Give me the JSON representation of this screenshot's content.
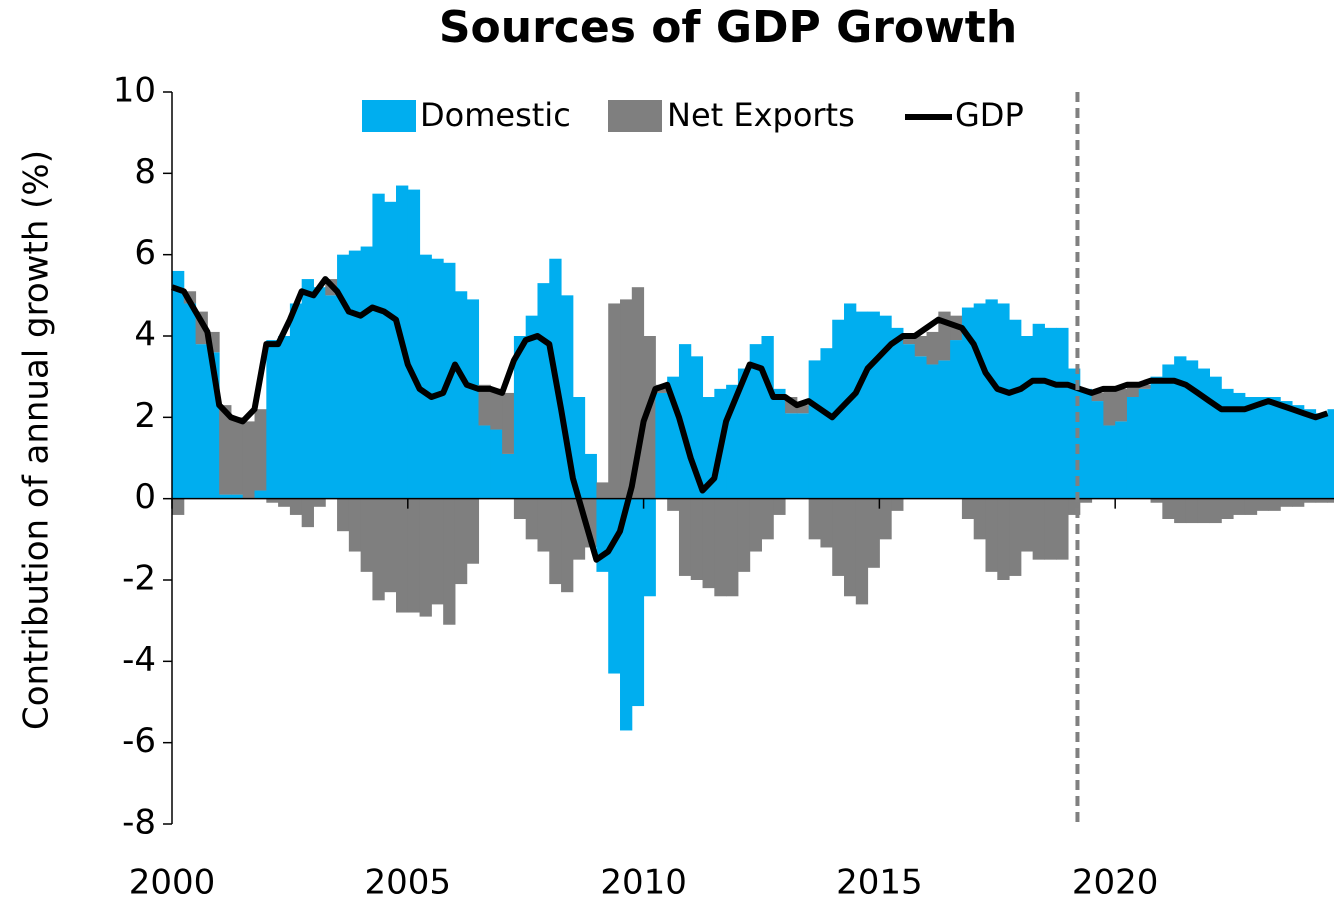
{
  "chart_data": {
    "type": "bar",
    "title": "Sources of GDP Growth",
    "y_label": "Contribution of annual growth (%)",
    "x": [
      2000,
      2000.25,
      2000.5,
      2000.75,
      2001,
      2001.25,
      2001.5,
      2001.75,
      2002,
      2002.25,
      2002.5,
      2002.75,
      2003,
      2003.25,
      2003.5,
      2003.75,
      2004,
      2004.25,
      2004.5,
      2004.75,
      2005,
      2005.25,
      2005.5,
      2005.75,
      2006,
      2006.25,
      2006.5,
      2006.75,
      2007,
      2007.25,
      2007.5,
      2007.75,
      2008,
      2008.25,
      2008.5,
      2008.75,
      2009,
      2009.25,
      2009.5,
      2009.75,
      2010,
      2010.25,
      2010.5,
      2010.75,
      2011,
      2011.25,
      2011.5,
      2011.75,
      2012,
      2012.25,
      2012.5,
      2012.75,
      2013,
      2013.25,
      2013.5,
      2013.75,
      2014,
      2014.25,
      2014.5,
      2014.75,
      2015,
      2015.25,
      2015.5,
      2015.75,
      2016,
      2016.25,
      2016.5,
      2016.75,
      2017,
      2017.25,
      2017.5,
      2017.75,
      2018,
      2018.25,
      2018.5,
      2018.75,
      2019,
      2019.25,
      2019.5,
      2019.75,
      2020,
      2020.25,
      2020.5,
      2020.75,
      2021,
      2021.25,
      2021.5,
      2021.75,
      2022,
      2022.25,
      2022.5,
      2022.75,
      2023,
      2023.25,
      2023.5,
      2023.75,
      2024,
      2024.25,
      2024.5
    ],
    "series": [
      {
        "name": "Domestic",
        "color": "#00aeef",
        "type": "bar",
        "values": [
          5.6,
          4.8,
          3.8,
          3.6,
          0.1,
          0.1,
          0.0,
          0.2,
          3.9,
          4.0,
          4.8,
          5.4,
          5.2,
          5.0,
          6.0,
          6.1,
          6.2,
          7.5,
          7.3,
          7.7,
          7.6,
          6.0,
          5.9,
          5.8,
          5.1,
          4.9,
          1.8,
          1.7,
          1.1,
          4.0,
          4.5,
          5.3,
          5.9,
          5.0,
          2.5,
          1.1,
          -1.8,
          -4.3,
          -5.7,
          -5.1,
          -2.4,
          2.6,
          3.0,
          3.8,
          3.5,
          2.5,
          2.7,
          2.8,
          3.2,
          3.8,
          4.0,
          2.7,
          2.1,
          2.1,
          3.4,
          3.7,
          4.4,
          4.8,
          4.6,
          4.6,
          4.5,
          4.2,
          3.8,
          3.5,
          3.3,
          3.4,
          3.9,
          4.7,
          4.8,
          4.9,
          4.8,
          4.4,
          4.0,
          4.3,
          4.2,
          4.2,
          3.2,
          2.7,
          2.4,
          1.8,
          1.9,
          2.5,
          2.7,
          3.0,
          3.3,
          3.5,
          3.4,
          3.2,
          3.0,
          2.7,
          2.6,
          2.5,
          2.5,
          2.5,
          2.4,
          2.3,
          2.2,
          2.1,
          2.2
        ]
      },
      {
        "name": "Net Exports",
        "color": "#7f7f7f",
        "type": "bar",
        "values": [
          -0.4,
          0.3,
          0.8,
          0.5,
          2.2,
          1.9,
          1.9,
          2.0,
          -0.1,
          -0.2,
          -0.4,
          -0.7,
          -0.2,
          0.4,
          -0.8,
          -1.3,
          -1.8,
          -2.5,
          -2.3,
          -2.8,
          -2.8,
          -2.9,
          -2.6,
          -3.1,
          -2.1,
          -1.6,
          1.0,
          1.0,
          1.5,
          -0.5,
          -1.0,
          -1.3,
          -2.1,
          -2.3,
          -1.5,
          -1.2,
          0.4,
          4.8,
          4.9,
          5.2,
          4.0,
          0.2,
          -0.3,
          -1.9,
          -2.0,
          -2.2,
          -2.4,
          -2.4,
          -1.8,
          -1.3,
          -1.0,
          -0.4,
          0.4,
          0.2,
          -1.0,
          -1.2,
          -1.9,
          -2.4,
          -2.6,
          -1.7,
          -1.0,
          -0.3,
          0.2,
          0.5,
          0.8,
          1.2,
          0.6,
          -0.5,
          -1.0,
          -1.8,
          -2.0,
          -1.9,
          -1.3,
          -1.5,
          -1.5,
          -1.5,
          -0.4,
          -0.1,
          0.2,
          0.9,
          0.8,
          0.3,
          0.1,
          -0.1,
          -0.5,
          -0.6,
          -0.6,
          -0.6,
          -0.6,
          -0.5,
          -0.4,
          -0.4,
          -0.3,
          -0.3,
          -0.2,
          -0.2,
          -0.1,
          -0.1,
          -0.1
        ]
      },
      {
        "name": "GDP",
        "color": "#000000",
        "type": "line",
        "values": [
          5.2,
          5.1,
          4.6,
          4.1,
          2.3,
          2.0,
          1.9,
          2.2,
          3.8,
          3.8,
          4.4,
          5.1,
          5.0,
          5.4,
          5.1,
          4.6,
          4.5,
          4.7,
          4.6,
          4.4,
          3.3,
          2.7,
          2.5,
          2.6,
          3.3,
          2.8,
          2.7,
          2.7,
          2.6,
          3.4,
          3.9,
          4.0,
          3.8,
          2.2,
          0.5,
          -0.5,
          -1.5,
          -1.3,
          -0.8,
          0.3,
          1.9,
          2.7,
          2.8,
          2.0,
          1.0,
          0.2,
          0.5,
          1.9,
          2.6,
          3.3,
          3.2,
          2.5,
          2.5,
          2.3,
          2.4,
          2.2,
          2.0,
          2.3,
          2.6,
          3.2,
          3.5,
          3.8,
          4.0,
          4.0,
          4.2,
          4.4,
          4.3,
          4.2,
          3.8,
          3.1,
          2.7,
          2.6,
          2.7,
          2.9,
          2.9,
          2.8,
          2.8,
          2.7,
          2.6,
          2.7,
          2.7,
          2.8,
          2.8,
          2.9,
          2.9,
          2.9,
          2.8,
          2.6,
          2.4,
          2.2,
          2.2,
          2.2,
          2.3,
          2.4,
          2.3,
          2.2,
          2.1,
          2.0,
          2.1
        ]
      }
    ],
    "xlim": [
      2000,
      2024.64
    ],
    "xticks": [
      2000,
      2005,
      2010,
      2015,
      2020
    ],
    "ylim": [
      -8,
      10
    ],
    "yticks": [
      -8,
      -6,
      -4,
      -2,
      0,
      2,
      4,
      6,
      8,
      10
    ],
    "forecast_x": 2019.2
  }
}
